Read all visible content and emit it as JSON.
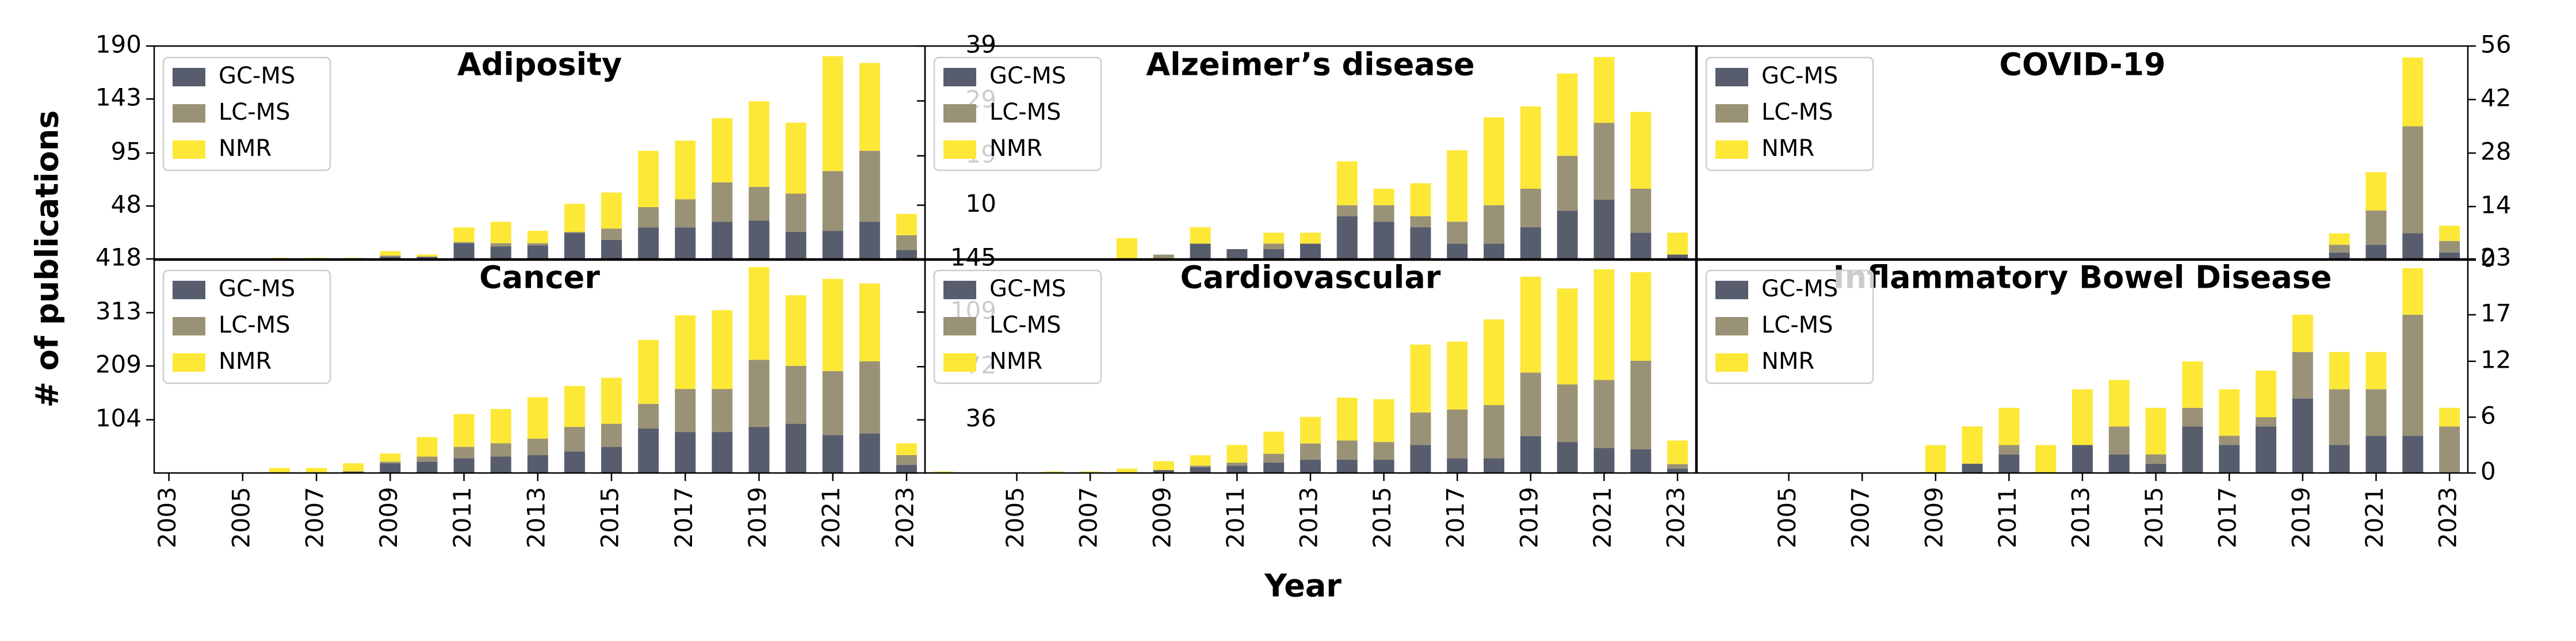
{
  "figure": {
    "ylabel": "# of publications",
    "xlabel": "Year"
  },
  "chart_data": [
    {
      "type": "bar",
      "stacked": true,
      "title": "Adiposity",
      "legend": "upper left",
      "x": [
        2003,
        2004,
        2005,
        2006,
        2007,
        2008,
        2009,
        2010,
        2011,
        2012,
        2013,
        2014,
        2015,
        2016,
        2017,
        2018,
        2019,
        2020,
        2021,
        2022,
        2023
      ],
      "xlim": [
        2002.6,
        2023.5
      ],
      "ylim": [
        0,
        190
      ],
      "yticks": [
        48,
        95,
        143,
        190
      ],
      "series": [
        {
          "name": "GC-MS",
          "color": "#575d6d",
          "values": [
            0,
            0,
            0,
            1,
            1,
            1,
            3,
            3,
            15,
            12,
            13,
            24,
            18,
            29,
            29,
            34,
            35,
            25,
            26,
            34,
            9
          ]
        },
        {
          "name": "LC-MS",
          "color": "#9a9276",
          "values": [
            0,
            0,
            0,
            0,
            0,
            0,
            1,
            0,
            1,
            3,
            2,
            1,
            10,
            18,
            25,
            35,
            30,
            34,
            53,
            63,
            13
          ]
        },
        {
          "name": "NMR",
          "color": "#fde838",
          "values": [
            0,
            0,
            0,
            1,
            1,
            1,
            4,
            2,
            13,
            19,
            11,
            25,
            32,
            50,
            52,
            57,
            76,
            63,
            102,
            78,
            19
          ]
        }
      ]
    },
    {
      "type": "bar",
      "stacked": true,
      "title": "Alzeimer’s disease",
      "legend": "upper left",
      "x": [
        2003,
        2004,
        2005,
        2006,
        2007,
        2008,
        2009,
        2010,
        2011,
        2012,
        2013,
        2014,
        2015,
        2016,
        2017,
        2018,
        2019,
        2020,
        2021,
        2022,
        2023
      ],
      "xlim": [
        2002.5,
        2023.5
      ],
      "ylim": [
        0,
        39
      ],
      "yticks": [
        10,
        19,
        29,
        39
      ],
      "series": [
        {
          "name": "GC-MS",
          "color": "#575d6d",
          "values": [
            0,
            0,
            0,
            0,
            0,
            0,
            0,
            3,
            2,
            2,
            3,
            8,
            7,
            6,
            3,
            3,
            6,
            9,
            11,
            5,
            1
          ]
        },
        {
          "name": "LC-MS",
          "color": "#9a9276",
          "values": [
            0,
            0,
            0,
            0,
            0,
            0,
            1,
            0,
            0,
            1,
            0,
            2,
            3,
            2,
            4,
            7,
            7,
            10,
            14,
            8,
            0
          ]
        },
        {
          "name": "NMR",
          "color": "#fde838",
          "values": [
            0,
            0,
            0,
            0,
            0,
            4,
            0,
            3,
            0,
            2,
            2,
            8,
            3,
            6,
            13,
            16,
            15,
            15,
            12,
            14,
            4
          ]
        }
      ]
    },
    {
      "type": "bar",
      "stacked": true,
      "title": "COVID-19",
      "legend": "upper left",
      "yaxis": "right",
      "x": [
        2003,
        2004,
        2005,
        2006,
        2007,
        2008,
        2009,
        2010,
        2011,
        2012,
        2013,
        2014,
        2015,
        2016,
        2017,
        2018,
        2019,
        2020,
        2021,
        2022,
        2023
      ],
      "xlim": [
        2002.5,
        2023.5
      ],
      "ylim": [
        0,
        56
      ],
      "yticks": [
        0,
        14,
        28,
        42,
        56
      ],
      "series": [
        {
          "name": "GC-MS",
          "color": "#575d6d",
          "values": [
            0,
            0,
            0,
            0,
            0,
            0,
            0,
            0,
            0,
            0,
            0,
            0,
            0,
            0,
            0,
            0,
            0,
            2,
            4,
            7,
            2
          ]
        },
        {
          "name": "LC-MS",
          "color": "#9a9276",
          "values": [
            0,
            0,
            0,
            0,
            0,
            0,
            0,
            0,
            0,
            0,
            0,
            0,
            0,
            0,
            0,
            0,
            0,
            2,
            9,
            28,
            3
          ]
        },
        {
          "name": "NMR",
          "color": "#fde838",
          "values": [
            0,
            0,
            0,
            0,
            0,
            0,
            0,
            0,
            0,
            0,
            0,
            0,
            0,
            0,
            0,
            0,
            0,
            3,
            10,
            18,
            4
          ]
        }
      ]
    },
    {
      "type": "bar",
      "stacked": true,
      "title": "Cancer",
      "legend": "upper left",
      "x": [
        2003,
        2004,
        2005,
        2006,
        2007,
        2008,
        2009,
        2010,
        2011,
        2012,
        2013,
        2014,
        2015,
        2016,
        2017,
        2018,
        2019,
        2020,
        2021,
        2022,
        2023
      ],
      "xlim": [
        2002.6,
        2023.5
      ],
      "ylim": [
        0,
        418
      ],
      "yticks": [
        104,
        209,
        313,
        418
      ],
      "xticks": [
        2003,
        2005,
        2007,
        2009,
        2011,
        2013,
        2015,
        2017,
        2019,
        2021,
        2023
      ],
      "series": [
        {
          "name": "GC-MS",
          "color": "#575d6d",
          "values": [
            0,
            0,
            0,
            0,
            0,
            3,
            19,
            22,
            29,
            32,
            35,
            42,
            51,
            87,
            80,
            80,
            90,
            96,
            74,
            77,
            16
          ]
        },
        {
          "name": "LC-MS",
          "color": "#9a9276",
          "values": [
            0,
            0,
            0,
            0,
            0,
            0,
            3,
            10,
            22,
            26,
            32,
            48,
            45,
            48,
            84,
            84,
            131,
            113,
            125,
            141,
            19
          ]
        },
        {
          "name": "NMR",
          "color": "#fde838",
          "values": [
            0,
            0,
            0,
            10,
            10,
            16,
            16,
            38,
            64,
            67,
            81,
            80,
            90,
            125,
            144,
            154,
            181,
            138,
            180,
            152,
            23
          ]
        }
      ]
    },
    {
      "type": "bar",
      "stacked": true,
      "title": "Cardiovascular",
      "legend": "upper left",
      "x": [
        2003,
        2004,
        2005,
        2006,
        2007,
        2008,
        2009,
        2010,
        2011,
        2012,
        2013,
        2014,
        2015,
        2016,
        2017,
        2018,
        2019,
        2020,
        2021,
        2022,
        2023
      ],
      "xlim": [
        2002.5,
        2023.5
      ],
      "ylim": [
        0,
        145
      ],
      "yticks": [
        36,
        72,
        109,
        145
      ],
      "xticks": [
        2005,
        2007,
        2009,
        2011,
        2013,
        2015,
        2017,
        2019,
        2021,
        2023
      ],
      "series": [
        {
          "name": "GC-MS",
          "color": "#575d6d",
          "values": [
            0,
            0,
            0,
            0,
            0,
            0,
            2,
            4,
            5,
            7,
            9,
            9,
            9,
            19,
            10,
            10,
            25,
            21,
            17,
            16,
            3
          ]
        },
        {
          "name": "LC-MS",
          "color": "#9a9276",
          "values": [
            0,
            0,
            0,
            0,
            0,
            0,
            0,
            1,
            2,
            6,
            11,
            13,
            12,
            22,
            33,
            36,
            43,
            39,
            46,
            60,
            3
          ]
        },
        {
          "name": "NMR",
          "color": "#fde838",
          "values": [
            1,
            0,
            0,
            1,
            1,
            3,
            6,
            7,
            12,
            15,
            18,
            29,
            29,
            46,
            46,
            58,
            65,
            65,
            75,
            60,
            16
          ]
        }
      ]
    },
    {
      "type": "bar",
      "stacked": true,
      "title": "Inflammatory Bowel Disease",
      "legend": "upper left",
      "yaxis": "right",
      "x": [
        2003,
        2004,
        2005,
        2006,
        2007,
        2008,
        2009,
        2010,
        2011,
        2012,
        2013,
        2014,
        2015,
        2016,
        2017,
        2018,
        2019,
        2020,
        2021,
        2022,
        2023
      ],
      "xlim": [
        2002.5,
        2023.5
      ],
      "ylim": [
        0,
        23
      ],
      "yticks": [
        0,
        6,
        12,
        17,
        23
      ],
      "xticks": [
        2005,
        2007,
        2009,
        2011,
        2013,
        2015,
        2017,
        2019,
        2021,
        2023
      ],
      "series": [
        {
          "name": "GC-MS",
          "color": "#575d6d",
          "values": [
            0,
            0,
            0,
            0,
            0,
            0,
            0,
            1,
            2,
            0,
            3,
            2,
            1,
            5,
            3,
            5,
            8,
            3,
            4,
            4,
            0
          ]
        },
        {
          "name": "LC-MS",
          "color": "#9a9276",
          "values": [
            0,
            0,
            0,
            0,
            0,
            0,
            0,
            0,
            1,
            0,
            0,
            3,
            1,
            2,
            1,
            1,
            5,
            6,
            5,
            13,
            5
          ]
        },
        {
          "name": "NMR",
          "color": "#fde838",
          "values": [
            0,
            0,
            0,
            0,
            0,
            0,
            3,
            4,
            4,
            3,
            6,
            5,
            5,
            5,
            5,
            5,
            4,
            4,
            4,
            5,
            2
          ]
        }
      ]
    }
  ]
}
